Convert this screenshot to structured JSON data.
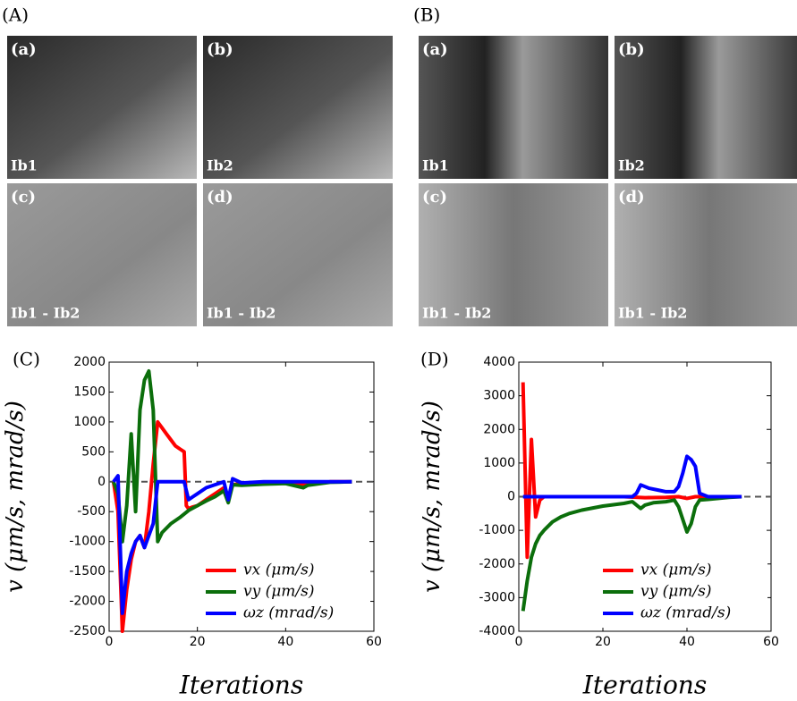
{
  "image_groups": [
    {
      "label": "(A)",
      "panels": [
        {
          "letter": "(a)",
          "caption": "Ib1"
        },
        {
          "letter": "(b)",
          "caption": "Ib2"
        },
        {
          "letter": "(c)",
          "caption": "Ib1 - Ib2"
        },
        {
          "letter": "(d)",
          "caption": "Ib1 - Ib2"
        }
      ]
    },
    {
      "label": "(B)",
      "panels": [
        {
          "letter": "(a)",
          "caption": "Ib1"
        },
        {
          "letter": "(b)",
          "caption": "Ib2"
        },
        {
          "letter": "(c)",
          "caption": "Ib1 - Ib2"
        },
        {
          "letter": "(d)",
          "caption": "Ib1 - Ib2"
        }
      ]
    }
  ],
  "chart_data": [
    {
      "type": "line",
      "panel_label": "(C)",
      "ylabel": "v (μm/s, mrad/s)",
      "xlabel": "Iterations",
      "xlim": [
        0,
        60
      ],
      "xticks": [
        0,
        20,
        40,
        60
      ],
      "ylim": [
        -2500,
        2000
      ],
      "yticks": [
        -2500,
        -2000,
        -1500,
        -1000,
        -500,
        0,
        500,
        1000,
        1500,
        2000
      ],
      "reference_line": 0,
      "legend": "lower right",
      "series": [
        {
          "name": "vx (μm/s)",
          "color": "#ff0000",
          "x": [
            1,
            2,
            3,
            4,
            5,
            6,
            7,
            8,
            9,
            10,
            11,
            12,
            13,
            14,
            15,
            16,
            17,
            17.5,
            18,
            19,
            20,
            22,
            24,
            26,
            27,
            28,
            30,
            35,
            40,
            45,
            50,
            55
          ],
          "values": [
            0,
            -500,
            -2500,
            -1800,
            -1300,
            -1000,
            -900,
            -1100,
            -500,
            300,
            1000,
            900,
            800,
            700,
            600,
            550,
            500,
            -400,
            -450,
            -420,
            -400,
            -300,
            -200,
            -100,
            -300,
            -50,
            -30,
            -20,
            -10,
            -50,
            0,
            0
          ]
        },
        {
          "name": "vy (μm/s)",
          "color": "#0b6e0b",
          "x": [
            1,
            2,
            3,
            4,
            5,
            6,
            7,
            8,
            9,
            10,
            11,
            12,
            14,
            16,
            18,
            20,
            22,
            24,
            26,
            27,
            28,
            30,
            35,
            40,
            44,
            45,
            50,
            55
          ],
          "values": [
            0,
            -200,
            -1000,
            -400,
            800,
            -500,
            1200,
            1700,
            1850,
            1200,
            -1000,
            -850,
            -700,
            -600,
            -480,
            -400,
            -320,
            -250,
            -150,
            -350,
            -50,
            -60,
            -40,
            -30,
            -100,
            -60,
            -10,
            0
          ]
        },
        {
          "name": "ωz (mrad/s)",
          "color": "#0000ff",
          "x": [
            1,
            2,
            3,
            4,
            5,
            6,
            7,
            8,
            9,
            10,
            11,
            12,
            14,
            16,
            17,
            18,
            19,
            20,
            22,
            24,
            26,
            27,
            28,
            30,
            35,
            40,
            45,
            50,
            55
          ],
          "values": [
            0,
            100,
            -2200,
            -1500,
            -1200,
            -1000,
            -900,
            -1100,
            -900,
            -700,
            0,
            0,
            0,
            0,
            0,
            -300,
            -250,
            -200,
            -100,
            -50,
            0,
            -300,
            50,
            -20,
            0,
            0,
            0,
            0,
            0
          ]
        }
      ]
    },
    {
      "type": "line",
      "panel_label": "(D)",
      "ylabel": "v (μm/s, mrad/s)",
      "xlabel": "Iterations",
      "xlim": [
        0,
        60
      ],
      "xticks": [
        0,
        20,
        40,
        60
      ],
      "ylim": [
        -4000,
        4000
      ],
      "yticks": [
        -4000,
        -3000,
        -2000,
        -1000,
        0,
        1000,
        2000,
        3000,
        4000
      ],
      "reference_line": 0,
      "legend": "lower right",
      "series": [
        {
          "name": "vx (μm/s)",
          "color": "#ff0000",
          "x": [
            1,
            2,
            3,
            4,
            5,
            6,
            8,
            10,
            15,
            20,
            25,
            30,
            35,
            38,
            40,
            42,
            45,
            50,
            53
          ],
          "values": [
            3400,
            -1800,
            1700,
            -600,
            -100,
            0,
            0,
            0,
            0,
            0,
            0,
            -30,
            -20,
            0,
            -50,
            0,
            0,
            0,
            0
          ]
        },
        {
          "name": "vy (μm/s)",
          "color": "#0b6e0b",
          "x": [
            1,
            2,
            3,
            4,
            5,
            6,
            8,
            10,
            12,
            15,
            20,
            25,
            27,
            29,
            30,
            32,
            35,
            37,
            38,
            40,
            41,
            42,
            43,
            45,
            50,
            53
          ],
          "values": [
            -3400,
            -2500,
            -1800,
            -1400,
            -1150,
            -1000,
            -750,
            -600,
            -500,
            -400,
            -280,
            -200,
            -150,
            -350,
            -250,
            -180,
            -150,
            -100,
            -300,
            -1050,
            -800,
            -300,
            -100,
            -80,
            -20,
            0
          ]
        },
        {
          "name": "ωz (mrad/s)",
          "color": "#0000ff",
          "x": [
            1,
            5,
            10,
            20,
            27,
            28,
            29,
            30,
            31,
            33,
            35,
            37,
            38,
            39,
            40,
            41,
            42,
            43,
            45,
            47,
            50,
            53
          ],
          "values": [
            0,
            0,
            0,
            0,
            0,
            100,
            350,
            300,
            250,
            200,
            150,
            150,
            300,
            700,
            1200,
            1100,
            900,
            100,
            0,
            0,
            0,
            0
          ]
        }
      ]
    }
  ]
}
